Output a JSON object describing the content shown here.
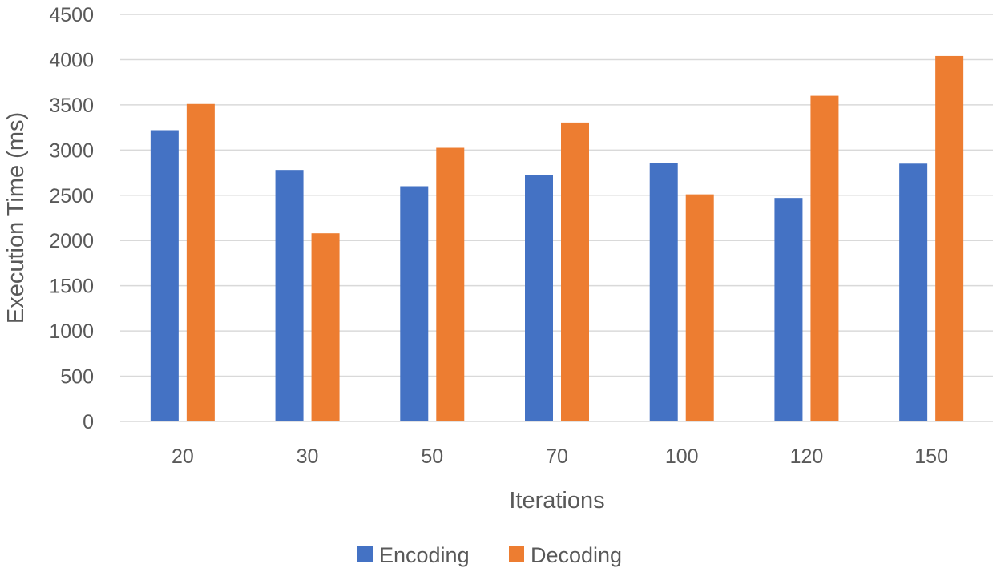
{
  "chart_data": {
    "type": "bar",
    "categories": [
      "20",
      "30",
      "50",
      "70",
      "100",
      "120",
      "150"
    ],
    "series": [
      {
        "name": "Encoding",
        "values": [
          3220,
          2780,
          2600,
          2720,
          2855,
          2470,
          2850
        ],
        "color": "#4472c4"
      },
      {
        "name": "Decoding",
        "values": [
          3510,
          2080,
          3025,
          3305,
          2510,
          3600,
          4040
        ],
        "color": "#ed7d31"
      }
    ],
    "xlabel": "Iterations",
    "ylabel": "Execution Time (ms)",
    "ylim": [
      0,
      4500
    ],
    "yticks": [
      0,
      500,
      1000,
      1500,
      2000,
      2500,
      3000,
      3500,
      4000,
      4500
    ],
    "grid": true,
    "legend": "bottom-center"
  }
}
